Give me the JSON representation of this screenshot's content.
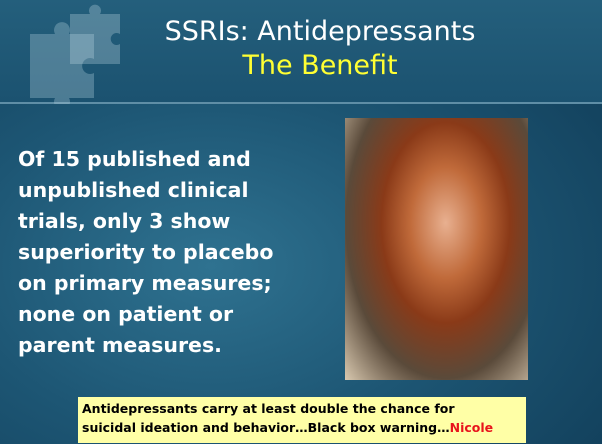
{
  "title": {
    "line1": "SSRIs: Antidepressants",
    "line2": "The Benefit"
  },
  "body": {
    "lines": [
      "Of 15 published and",
      "unpublished clinical",
      "trials, only 3 show",
      "superiority to placebo",
      "on primary measures;",
      "none on patient or",
      "parent measures."
    ]
  },
  "callout": {
    "line1": "Antidepressants carry at least double the chance for",
    "line2": "suicidal ideation and behavior…Black box warning…",
    "name": "Nicole"
  }
}
